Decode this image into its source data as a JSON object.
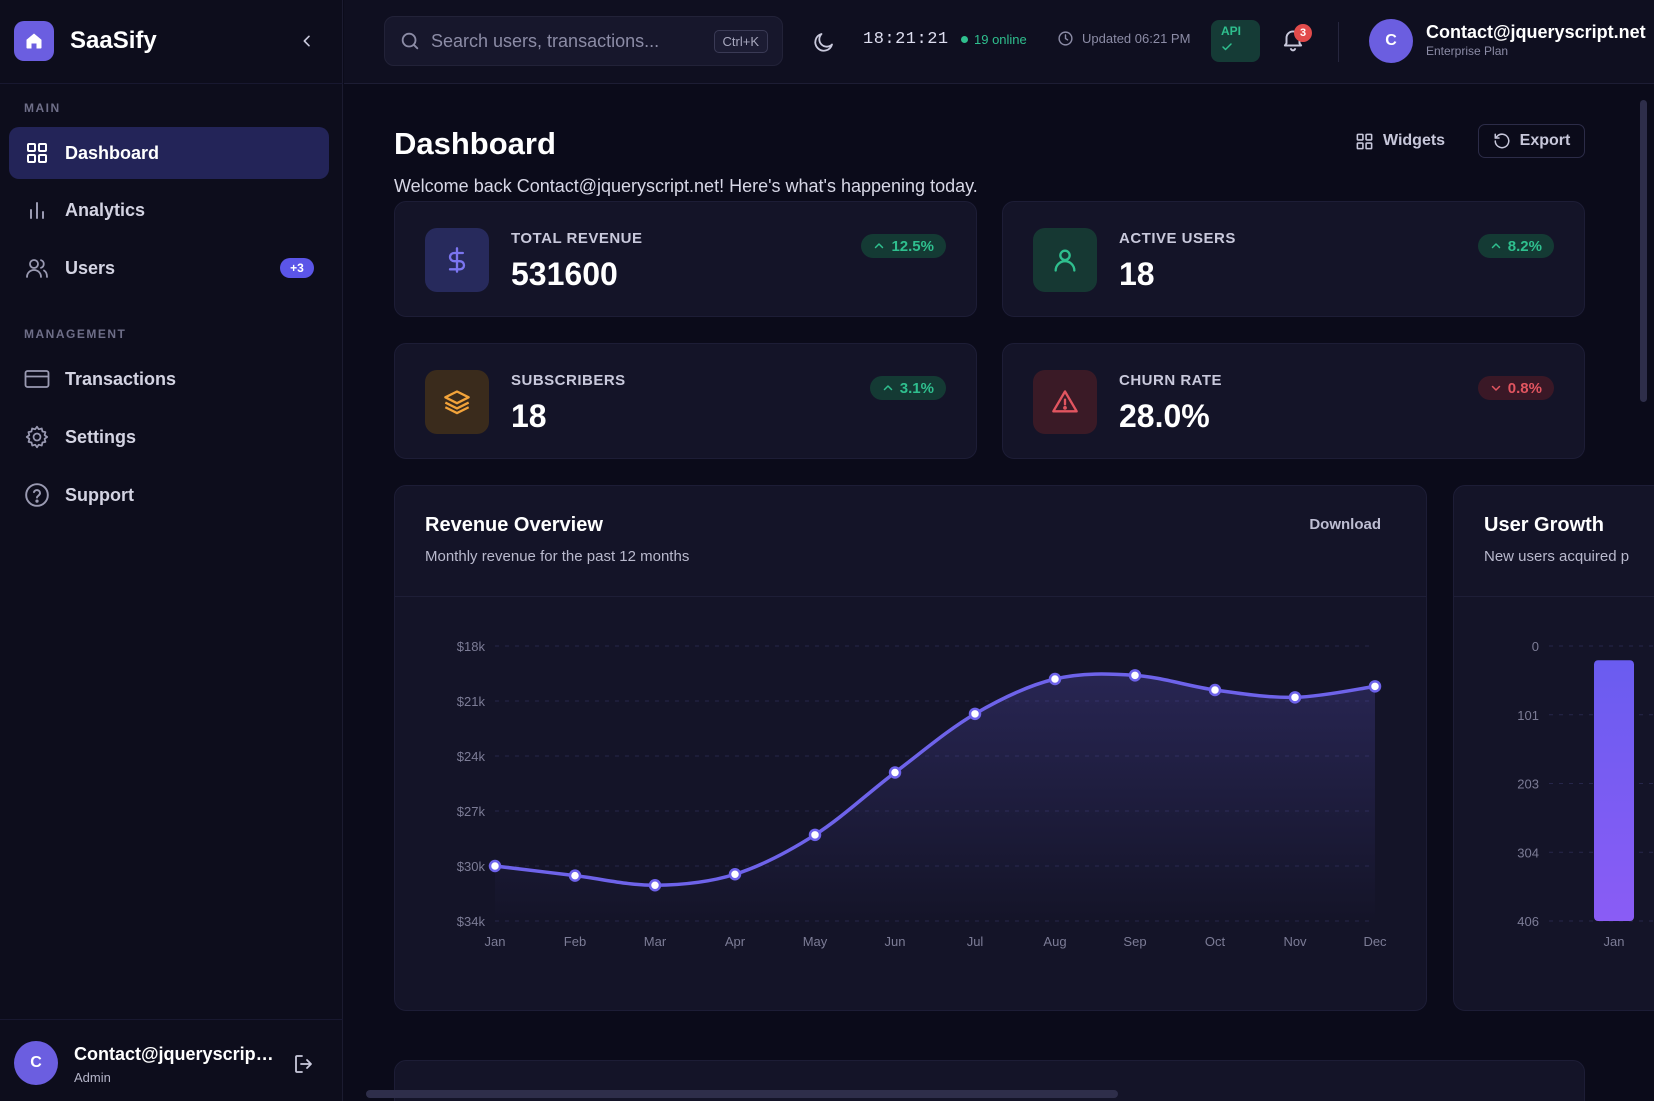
{
  "app": {
    "name": "SaaSify"
  },
  "sidebar": {
    "sections": [
      {
        "label": "MAIN"
      },
      {
        "label": "MANAGEMENT"
      }
    ],
    "items": [
      {
        "label": "Dashboard",
        "icon": "grid-icon"
      },
      {
        "label": "Analytics",
        "icon": "bar-chart-icon"
      },
      {
        "label": "Users",
        "icon": "users-icon",
        "badge": "+3"
      },
      {
        "label": "Transactions",
        "icon": "credit-card-icon"
      },
      {
        "label": "Settings",
        "icon": "gear-icon"
      },
      {
        "label": "Support",
        "icon": "help-circle-icon"
      }
    ],
    "footer": {
      "avatar": "C",
      "name": "Contact@jqueryscript.net",
      "role": "Admin"
    }
  },
  "header": {
    "search": {
      "placeholder": "Search users, transactions...",
      "shortcut": "Ctrl+K"
    },
    "time": "18:21:21",
    "online": "19 online",
    "updated": "Updated 06:21 PM",
    "api_label": "API",
    "notifications": "3",
    "user": {
      "avatar": "C",
      "name": "Contact@jqueryscript.net",
      "plan": "Enterprise Plan"
    }
  },
  "main": {
    "title": "Dashboard",
    "welcome": "Welcome back Contact@jqueryscript.net! Here's what's happening today.",
    "widgets_label": "Widgets",
    "export_label": "Export",
    "stats": [
      {
        "label": "TOTAL REVENUE",
        "value": "531600",
        "trend": "12.5%",
        "direction": "up",
        "icon": "dollar-icon"
      },
      {
        "label": "ACTIVE USERS",
        "value": "18",
        "trend": "8.2%",
        "direction": "up",
        "icon": "user-icon"
      },
      {
        "label": "SUBSCRIBERS",
        "value": "18",
        "trend": "3.1%",
        "direction": "up",
        "icon": "layers-icon"
      },
      {
        "label": "CHURN RATE",
        "value": "28.0%",
        "trend": "0.8%",
        "direction": "down",
        "icon": "alert-triangle-icon"
      }
    ],
    "revenue_card": {
      "title": "Revenue Overview",
      "subtitle": "Monthly revenue for the past 12 months",
      "download_label": "Download"
    },
    "growth_card": {
      "title": "User Growth",
      "subtitle": "New users acquired p"
    }
  },
  "colors": {
    "accent": "#6b5ee0",
    "line": "#6e63ea",
    "positive": "#2fbf8e",
    "negative": "#e25560",
    "background": "#0b0b1a",
    "card": "#141428"
  },
  "chart_data": [
    {
      "type": "line",
      "title": "Revenue Overview",
      "categories": [
        "Jan",
        "Feb",
        "Mar",
        "Apr",
        "May",
        "Jun",
        "Jul",
        "Aug",
        "Sep",
        "Oct",
        "Nov",
        "Dec"
      ],
      "y_tick_labels": [
        "$18k",
        "$21k",
        "$24k",
        "$27k",
        "$30k",
        "$34k"
      ],
      "y_ticks": [
        18000,
        21000,
        24000,
        27000,
        30000,
        34000
      ],
      "y_inverted": true,
      "ylim": [
        18000,
        34000
      ],
      "series": [
        {
          "values": [
            30000,
            30700,
            31400,
            30600,
            28300,
            24900,
            21700,
            19800,
            19600,
            20400,
            20800,
            20200
          ]
        }
      ],
      "grid": true
    },
    {
      "type": "bar",
      "title": "User Growth",
      "categories": [
        "Jan"
      ],
      "y_tick_labels": [
        "0",
        "101",
        "203",
        "304",
        "406"
      ],
      "y_ticks": [
        0,
        101,
        203,
        304,
        406
      ],
      "y_inverted": true,
      "ylim": [
        0,
        406
      ],
      "series": [
        {
          "values": [
            385
          ]
        }
      ],
      "grid": true
    }
  ]
}
